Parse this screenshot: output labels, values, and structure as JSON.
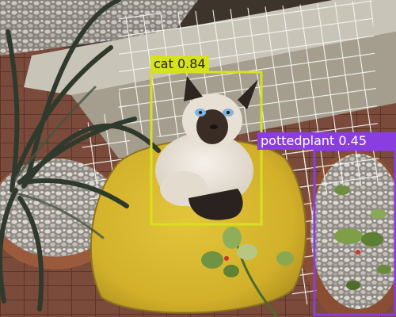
{
  "detections": [
    {
      "label": "cat 0.84",
      "class": "cat",
      "score": 0.84,
      "color": "#d6e21f",
      "text_color": "#222222"
    },
    {
      "label": "pottedplant 0.45",
      "class": "pottedplant",
      "score": 0.45,
      "color": "#8b3ee0",
      "text_color": "#ffffff"
    }
  ],
  "colors": {
    "cushion": "#d9bb32",
    "chair_wire": "#f2f2ee",
    "tile_floor": "#7a4f3e",
    "gravel": "#c9c6c0",
    "leaf_dark": "#2f3a2d",
    "cat_fur": "#efe9e0",
    "cat_points": "#2a221e"
  }
}
